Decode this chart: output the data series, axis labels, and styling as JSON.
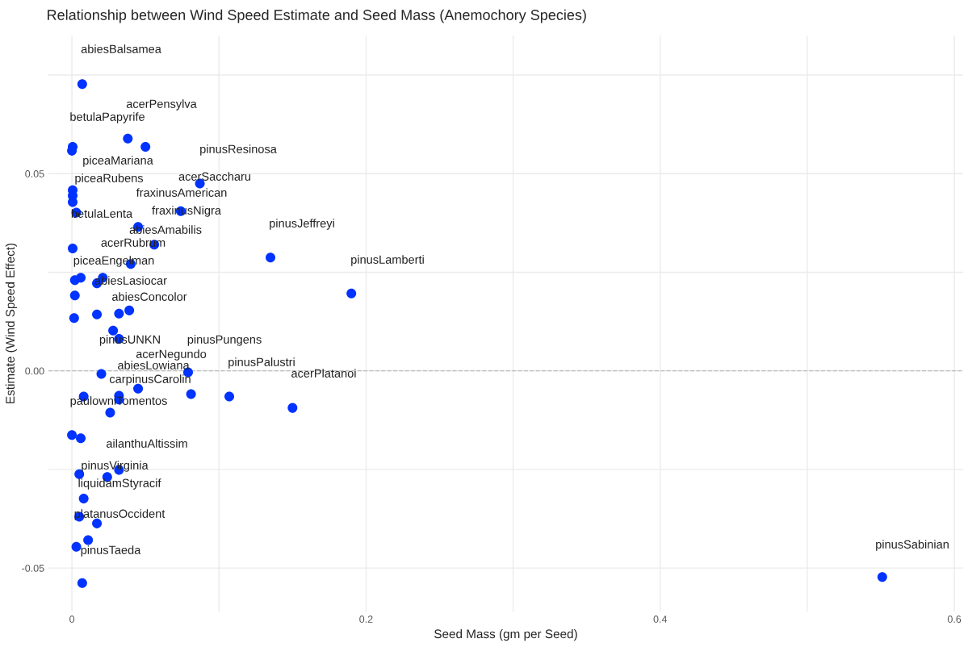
{
  "chart_data": {
    "type": "scatter",
    "title": "Relationship between Wind Speed Estimate and Seed Mass (Anemochory Species)",
    "xlabel": "Seed Mass (gm per Seed)",
    "ylabel": "Estimate (Wind Speed Effect)",
    "x": [
      0.007,
      0.038,
      0.05,
      0.0005,
      0.0,
      0.087,
      0.0005,
      0.0005,
      0.0005,
      0.003,
      0.074,
      0.045,
      0.056,
      0.0005,
      0.135,
      0.04,
      0.19,
      0.002,
      0.006,
      0.017,
      0.021,
      0.002,
      0.0015,
      0.017,
      0.032,
      0.039,
      0.028,
      0.032,
      0.02,
      0.079,
      0.045,
      0.081,
      0.107,
      0.15,
      0.008,
      0.032,
      0.032,
      0.026,
      0.0,
      0.006,
      0.032,
      0.005,
      0.024,
      0.008,
      0.005,
      0.017,
      0.011,
      0.003,
      0.007,
      0.551
    ],
    "series": [
      {
        "color": "#0033ff",
        "values": [
          0.0727,
          0.0589,
          0.0568,
          0.0568,
          0.0558,
          0.0475,
          0.0458,
          0.0444,
          0.0428,
          0.0401,
          0.0405,
          0.0365,
          0.032,
          0.031,
          0.0287,
          0.0271,
          0.0196,
          0.023,
          0.0236,
          0.0222,
          0.0236,
          0.0191,
          0.0134,
          0.0143,
          0.0145,
          0.0153,
          0.0102,
          0.0081,
          -0.0008,
          -0.0004,
          -0.0045,
          -0.0059,
          -0.0065,
          -0.0094,
          -0.0065,
          -0.0063,
          -0.0073,
          -0.0106,
          -0.0163,
          -0.0171,
          -0.0251,
          -0.0262,
          -0.0269,
          -0.0324,
          -0.037,
          -0.0387,
          -0.0429,
          -0.0446,
          -0.0538,
          -0.0523
        ]
      }
    ],
    "marker": "circle",
    "xlim": [
      -0.016,
      0.606
    ],
    "ylim": [
      -0.061,
      0.085
    ],
    "xticks": [
      0,
      {
        "value": 0.1,
        "label": null
      },
      0.2,
      {
        "value": 0.3,
        "label": null
      },
      0.4,
      {
        "value": 0.5,
        "label": null
      },
      0.6
    ],
    "yticks": [
      -0.05,
      {
        "value": -0.025,
        "label": null
      },
      {
        "value": 0,
        "label": "0.00"
      },
      {
        "value": 0.025,
        "label": null
      },
      0.05,
      {
        "value": 0.075,
        "label": null
      }
    ],
    "grid": true,
    "ref_lines": [
      {
        "axis": "y",
        "value": 0,
        "color": "#bbbbbb",
        "line_style": "dashed"
      }
    ],
    "annotations": [
      "abiesBalsamea",
      "acerPensylva",
      "betulaPapyrife",
      "pinusResinosa",
      "piceaMariana",
      "piceaRubens",
      "acerSaccharu",
      "fraxinusAmerican",
      "fraxinusNigra",
      "betulaLenta",
      "abiesAmabilis",
      "pinusJeffreyi",
      "acerRubrum",
      "piceaEngelman",
      "pinusLamberti",
      "abiesLasiocar",
      "abiesConcolor",
      "pinusUNKN",
      "pinusPungens",
      "acerNegundo",
      "pinusPalustri",
      "abiesLowiana",
      "acerPlatanoi",
      "carpinusCarolin",
      "paulowniTomentos",
      "ailanthuAltissim",
      "pinusVirginia",
      "liquidamStyracif",
      "platanusOccident",
      "pinusTaeda",
      "pinusSabinian"
    ]
  }
}
